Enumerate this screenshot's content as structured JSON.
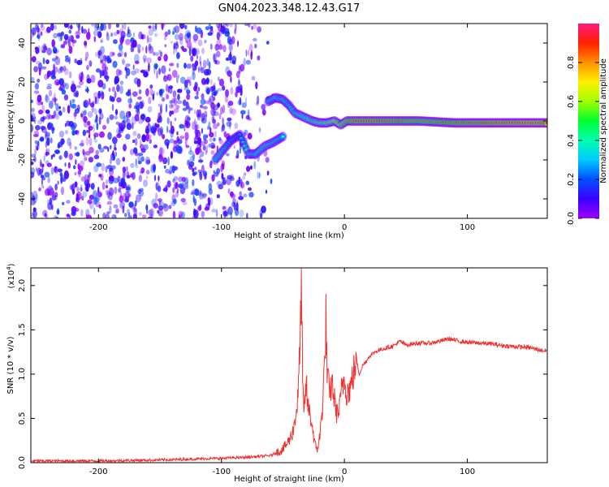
{
  "title": "GN04.2023.348.12.43.G17",
  "colors": {
    "snr_line": "#ee3333",
    "axis": "#000000",
    "spectrogram_bg": "#ffffff"
  },
  "chart_data": [
    {
      "type": "heatmap",
      "xlabel": "Height of straight line (km)",
      "ylabel": "Frequency (Hz)",
      "xlim": [
        -255,
        165
      ],
      "ylim": [
        -50,
        50
      ],
      "x_ticks": [
        {
          "value": -200,
          "label": "-200"
        },
        {
          "value": -100,
          "label": "-100"
        },
        {
          "value": 0,
          "label": "0"
        },
        {
          "value": 100,
          "label": "100"
        }
      ],
      "y_ticks": [
        {
          "value": -40,
          "label": "-40"
        },
        {
          "value": -20,
          "label": "-20"
        },
        {
          "value": 0,
          "label": "0"
        },
        {
          "value": 20,
          "label": "20"
        },
        {
          "value": 40,
          "label": "40"
        }
      ],
      "colorbar": {
        "label": "Normalized spectral amplitude",
        "range": [
          0,
          1
        ],
        "ticks": [
          {
            "value": 0.0,
            "label": "0.0"
          },
          {
            "value": 0.2,
            "label": "0.2"
          },
          {
            "value": 0.4,
            "label": "0.4"
          },
          {
            "value": 0.6,
            "label": "0.6"
          },
          {
            "value": 0.8,
            "label": "0.8"
          }
        ],
        "colormap": [
          "#9a00ff",
          "#3c00ff",
          "#0050ff",
          "#00c8ff",
          "#00ffb0",
          "#00ff30",
          "#a0ff00",
          "#fff000",
          "#ff9000",
          "#ff2000",
          "#ff1a80"
        ]
      },
      "noise_region": {
        "x_range": [
          -255,
          -65
        ],
        "amplitude": [
          0.0,
          0.2
        ]
      },
      "signal_track": [
        {
          "x": -105,
          "freq": -20,
          "amp": 0.45
        },
        {
          "x": -100,
          "freq": -16,
          "amp": 0.4
        },
        {
          "x": -92,
          "freq": -10,
          "amp": 0.3
        },
        {
          "x": -85,
          "freq": -7,
          "amp": 0.25
        },
        {
          "x": -78,
          "freq": -17,
          "amp": 0.45
        },
        {
          "x": -72,
          "freq": -17,
          "amp": 0.42
        },
        {
          "x": -65,
          "freq": -13,
          "amp": 0.45
        },
        {
          "x": -58,
          "freq": -11,
          "amp": 0.42
        },
        {
          "x": -50,
          "freq": -8,
          "amp": 0.38
        },
        {
          "x": -62,
          "freq": 10,
          "amp": 0.42
        },
        {
          "x": -56,
          "freq": 12,
          "amp": 0.45
        },
        {
          "x": -50,
          "freq": 11,
          "amp": 0.42
        },
        {
          "x": -45,
          "freq": 8,
          "amp": 0.38
        },
        {
          "x": -40,
          "freq": 4,
          "amp": 0.45
        },
        {
          "x": -33,
          "freq": 2,
          "amp": 0.5
        },
        {
          "x": -26,
          "freq": 0,
          "amp": 0.55
        },
        {
          "x": -20,
          "freq": -1,
          "amp": 0.6
        },
        {
          "x": -14,
          "freq": -1,
          "amp": 0.65
        },
        {
          "x": -8,
          "freq": 0,
          "amp": 0.7
        },
        {
          "x": -3,
          "freq": -2,
          "amp": 0.75
        },
        {
          "x": 2,
          "freq": 0,
          "amp": 0.8
        },
        {
          "x": 10,
          "freq": 0,
          "amp": 0.9
        },
        {
          "x": 30,
          "freq": 0,
          "amp": 0.88
        },
        {
          "x": 60,
          "freq": 0,
          "amp": 0.8
        },
        {
          "x": 90,
          "freq": -1,
          "amp": 0.85
        },
        {
          "x": 120,
          "freq": -1,
          "amp": 0.92
        },
        {
          "x": 150,
          "freq": -1,
          "amp": 0.95
        },
        {
          "x": 165,
          "freq": -1,
          "amp": 0.95
        }
      ]
    },
    {
      "type": "line",
      "xlabel": "Height of straight line (km)",
      "ylabel": "SNR (10 * v/v)",
      "y_multiplier": "(x10",
      "y_multiplier_exp": "4",
      "y_multiplier_close": ")",
      "xlim": [
        -255,
        165
      ],
      "ylim": [
        0.0,
        2.2
      ],
      "x_ticks": [
        {
          "value": -200,
          "label": "-200"
        },
        {
          "value": -100,
          "label": "-100"
        },
        {
          "value": 0,
          "label": "0"
        },
        {
          "value": 100,
          "label": "100"
        }
      ],
      "y_ticks": [
        {
          "value": 0.0,
          "label": "0.0"
        },
        {
          "value": 0.5,
          "label": "0.5"
        },
        {
          "value": 1.0,
          "label": "1.0"
        },
        {
          "value": 1.5,
          "label": "1.5"
        },
        {
          "value": 2.0,
          "label": "2.0"
        }
      ],
      "series": [
        {
          "color": "#ee3333",
          "x": [
            -255,
            -200,
            -150,
            -100,
            -80,
            -60,
            -50,
            -45,
            -42,
            -40,
            -38,
            -36,
            -35,
            -34,
            -33,
            -32,
            -31,
            -30,
            -28,
            -26,
            -24,
            -22,
            -20,
            -18,
            -17,
            -16,
            -15,
            -14,
            -13,
            -12,
            -11,
            -10,
            -8,
            -6,
            -4,
            -2,
            0,
            2,
            5,
            8,
            10,
            12,
            15,
            18,
            20,
            25,
            30,
            35,
            40,
            45,
            50,
            60,
            70,
            80,
            85,
            90,
            100,
            110,
            120,
            130,
            140,
            150,
            160,
            165
          ],
          "y": [
            0.02,
            0.02,
            0.03,
            0.05,
            0.06,
            0.08,
            0.15,
            0.25,
            0.35,
            0.5,
            0.7,
            1.3,
            2.2,
            0.9,
            0.5,
            0.75,
            0.9,
            0.65,
            0.55,
            0.4,
            0.2,
            0.15,
            0.3,
            0.6,
            0.9,
            1.1,
            1.62,
            1.0,
            0.9,
            0.7,
            0.85,
            0.9,
            0.7,
            0.55,
            0.6,
            0.85,
            0.95,
            0.8,
            0.85,
            1.05,
            1.15,
            1.0,
            1.1,
            1.15,
            1.2,
            1.25,
            1.28,
            1.3,
            1.32,
            1.37,
            1.33,
            1.35,
            1.35,
            1.38,
            1.4,
            1.38,
            1.36,
            1.35,
            1.34,
            1.32,
            1.31,
            1.3,
            1.27,
            1.26
          ]
        }
      ]
    }
  ]
}
